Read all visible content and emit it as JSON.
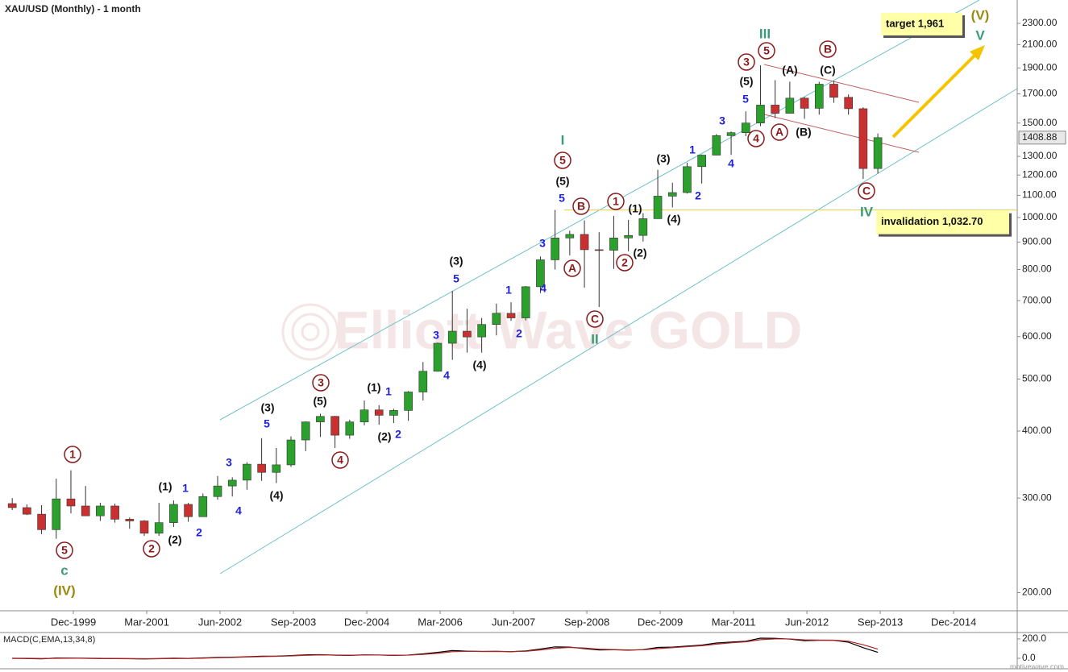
{
  "chart_data": {
    "type": "candlestick",
    "title": "XAU/USD (Monthly) - 1 month",
    "watermark": "Elliott Wave GOLD",
    "footer": "motivewave.com",
    "log_scale": true,
    "up_color": "#2ca02c",
    "down_color": "#c8312f",
    "xlim": [
      "1998-09",
      "2016-01"
    ],
    "xticks": [
      {
        "value": "1999-12",
        "label": "Dec-1999"
      },
      {
        "value": "2001-03",
        "label": "Mar-2001"
      },
      {
        "value": "2002-06",
        "label": "Jun-2002"
      },
      {
        "value": "2003-09",
        "label": "Sep-2003"
      },
      {
        "value": "2004-12",
        "label": "Dec-2004"
      },
      {
        "value": "2006-03",
        "label": "Mar-2006"
      },
      {
        "value": "2007-06",
        "label": "Jun-2007"
      },
      {
        "value": "2008-09",
        "label": "Sep-2008"
      },
      {
        "value": "2009-12",
        "label": "Dec-2009"
      },
      {
        "value": "2011-03",
        "label": "Mar-2011"
      },
      {
        "value": "2012-06",
        "label": "Jun-2012"
      },
      {
        "value": "2013-09",
        "label": "Sep-2013"
      },
      {
        "value": "2014-12",
        "label": "Dec-2014"
      }
    ],
    "ylim": [
      185,
      2543
    ],
    "yticks": [
      {
        "value": 2300,
        "label": "2300.00"
      },
      {
        "value": 2100,
        "label": "2100.00"
      },
      {
        "value": 1900,
        "label": "1900.00"
      },
      {
        "value": 1700,
        "label": "1700.00"
      },
      {
        "value": 1500,
        "label": "1500.00"
      },
      {
        "value": 1300,
        "label": "1300.00"
      },
      {
        "value": 1200,
        "label": "1200.00"
      },
      {
        "value": 1100,
        "label": "1100.00"
      },
      {
        "value": 1000,
        "label": "1000.00"
      },
      {
        "value": 900,
        "label": "900.00"
      },
      {
        "value": 800,
        "label": "800.00"
      },
      {
        "value": 700,
        "label": "700.00"
      },
      {
        "value": 600,
        "label": "600.00"
      },
      {
        "value": 500,
        "label": "500.00"
      },
      {
        "value": 400,
        "label": "400.00"
      },
      {
        "value": 300,
        "label": "300.00"
      },
      {
        "value": 200,
        "label": "200.00"
      }
    ],
    "last_price": 1408.88,
    "x": [
      "1998-10",
      "1999-01",
      "1999-04",
      "1999-07",
      "1999-10",
      "2000-01",
      "2000-04",
      "2000-07",
      "2000-10",
      "2001-01",
      "2001-04",
      "2001-07",
      "2001-10",
      "2002-01",
      "2002-04",
      "2002-07",
      "2002-10",
      "2003-01",
      "2003-04",
      "2003-07",
      "2003-10",
      "2004-01",
      "2004-04",
      "2004-07",
      "2004-10",
      "2005-01",
      "2005-04",
      "2005-07",
      "2005-10",
      "2006-01",
      "2006-04",
      "2006-07",
      "2006-10",
      "2007-01",
      "2007-04",
      "2007-07",
      "2007-10",
      "2008-01",
      "2008-04",
      "2008-07",
      "2008-10",
      "2009-01",
      "2009-04",
      "2009-07",
      "2009-10",
      "2010-01",
      "2010-04",
      "2010-07",
      "2010-10",
      "2011-01",
      "2011-04",
      "2011-07",
      "2011-10",
      "2012-01",
      "2012-04",
      "2012-07",
      "2012-10",
      "2013-01",
      "2013-04",
      "2013-07"
    ],
    "open": [
      293,
      288,
      280,
      262,
      299,
      290,
      278,
      290,
      274,
      272,
      258,
      270,
      292,
      277,
      302,
      316,
      324,
      347,
      335,
      346,
      385,
      416,
      426,
      393,
      416,
      438,
      428,
      437,
      473,
      517,
      583,
      614,
      599,
      632,
      663,
      650,
      743,
      834,
      916,
      930,
      871,
      869,
      916,
      926,
      995,
      1096,
      1113,
      1244,
      1307,
      1421,
      1439,
      1500,
      1620,
      1564,
      1669,
      1598,
      1772,
      1675,
      1595,
      1234
    ],
    "high": [
      300,
      292,
      291,
      326,
      338,
      316,
      294,
      293,
      276,
      273,
      294,
      297,
      294,
      306,
      330,
      328,
      350,
      388,
      372,
      391,
      417,
      431,
      427,
      420,
      456,
      447,
      440,
      475,
      538,
      585,
      730,
      676,
      650,
      691,
      695,
      745,
      846,
      1033,
      945,
      988,
      939,
      1007,
      990,
      1019,
      1227,
      1161,
      1265,
      1310,
      1431,
      1447,
      1577,
      1921,
      1803,
      1791,
      1677,
      1790,
      1796,
      1696,
      1605,
      1434
    ],
    "low": [
      285,
      279,
      257,
      252,
      281,
      278,
      272,
      270,
      263,
      255,
      255,
      265,
      271,
      277,
      298,
      302,
      311,
      323,
      320,
      343,
      367,
      390,
      372,
      387,
      410,
      411,
      414,
      418,
      456,
      516,
      543,
      560,
      560,
      603,
      642,
      643,
      723,
      800,
      850,
      740,
      681,
      802,
      865,
      902,
      995,
      1044,
      1108,
      1157,
      1306,
      1308,
      1418,
      1480,
      1532,
      1563,
      1527,
      1555,
      1636,
      1555,
      1180,
      1208
    ],
    "close": [
      288,
      280,
      262,
      299,
      290,
      278,
      290,
      274,
      272,
      258,
      270,
      292,
      277,
      302,
      316,
      324,
      347,
      335,
      346,
      385,
      416,
      426,
      393,
      416,
      438,
      428,
      437,
      473,
      517,
      583,
      614,
      599,
      632,
      663,
      650,
      743,
      834,
      916,
      930,
      871,
      869,
      916,
      926,
      995,
      1096,
      1113,
      1244,
      1307,
      1421,
      1439,
      1500,
      1620,
      1564,
      1669,
      1598,
      1772,
      1675,
      1595,
      1234,
      1408.88
    ],
    "invalidation": {
      "value": 1032.7,
      "label": "invalidation 1,032.70"
    },
    "target_label": "target 1,961",
    "wave_labels": [
      "1",
      "5",
      "2",
      "3",
      "4",
      "5",
      "B",
      "A",
      "1",
      "2",
      "C",
      "3",
      "5",
      "4",
      "A",
      "B",
      "C",
      "(1)",
      "(2)",
      "(3)",
      "(4)",
      "(5)",
      "(3)",
      "(4)",
      "(1)",
      "(2)",
      "(5)",
      "(1)",
      "(2)",
      "(3)",
      "(4)",
      "(5)",
      "(A)",
      "(B)",
      "(C)",
      "1",
      "2",
      "3",
      "4",
      "5",
      "5",
      "3",
      "4",
      "1",
      "2",
      "1",
      "2",
      "3",
      "4",
      "5",
      "1",
      "2",
      "3",
      "4",
      "5",
      "I",
      "II",
      "III",
      "IV",
      "c",
      "V",
      "(IV)",
      "(V)"
    ],
    "macd": {
      "title": "MACD(C,EMA,13,34,8)",
      "ylim": [
        -108,
        266
      ],
      "yticks": [
        {
          "value": 200,
          "label": "200.0"
        },
        {
          "value": 0,
          "label": "0.0"
        }
      ],
      "series": [
        {
          "color": "#000000",
          "values": [
            0,
            -2,
            -5,
            3,
            2,
            0,
            -2,
            -3,
            -4,
            -6,
            -3,
            1,
            -1,
            4,
            10,
            12,
            16,
            22,
            22,
            28,
            36,
            38,
            32,
            30,
            36,
            34,
            30,
            34,
            46,
            62,
            80,
            74,
            70,
            72,
            68,
            76,
            96,
            118,
            116,
            100,
            86,
            88,
            84,
            90,
            112,
            116,
            126,
            136,
            158,
            168,
            176,
            208,
            206,
            198,
            182,
            186,
            186,
            166,
            110,
            62
          ]
        },
        {
          "color": "#b22222",
          "values": [
            0,
            0,
            -2,
            0,
            1,
            1,
            0,
            -2,
            -3,
            -4,
            -4,
            -2,
            -1,
            1,
            6,
            9,
            13,
            18,
            21,
            25,
            31,
            35,
            34,
            32,
            34,
            34,
            32,
            33,
            40,
            52,
            68,
            73,
            72,
            72,
            70,
            73,
            86,
            104,
            112,
            106,
            94,
            90,
            86,
            88,
            100,
            110,
            120,
            130,
            146,
            160,
            170,
            192,
            200,
            200,
            190,
            188,
            187,
            176,
            140,
            95
          ]
        }
      ]
    }
  }
}
